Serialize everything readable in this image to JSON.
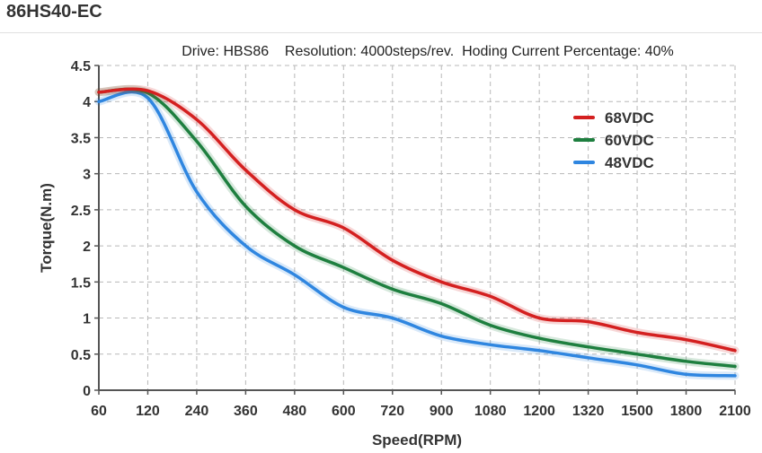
{
  "page_title": "86HS40-EC",
  "chart_data": {
    "type": "line",
    "title": "Drive: HBS86    Resolution: 4000steps/rev.  Hoding Current Percentage: 40%",
    "xlabel": "Speed(RPM)",
    "ylabel": "Torque(N.m)",
    "categories": [
      "60",
      "120",
      "240",
      "360",
      "480",
      "600",
      "720",
      "900",
      "1080",
      "1200",
      "1320",
      "1500",
      "1800",
      "2100"
    ],
    "y_ticks": [
      "0",
      "0.5",
      "1",
      "1.5",
      "2",
      "2.5",
      "3",
      "3.5",
      "4",
      "4.5"
    ],
    "ylim": [
      0,
      4.5
    ],
    "grid": true,
    "legend_position": "top-right",
    "series": [
      {
        "name": "68VDC",
        "color": "#d42020",
        "values": [
          4.13,
          4.15,
          3.75,
          3.05,
          2.5,
          2.25,
          1.8,
          1.5,
          1.3,
          1.0,
          0.95,
          0.8,
          0.7,
          0.55
        ]
      },
      {
        "name": "60VDC",
        "color": "#1e7f3f",
        "values": [
          4.13,
          4.12,
          3.45,
          2.55,
          2.0,
          1.7,
          1.4,
          1.2,
          0.9,
          0.72,
          0.6,
          0.5,
          0.4,
          0.33
        ]
      },
      {
        "name": "48VDC",
        "color": "#2f86e0",
        "values": [
          4.0,
          4.05,
          2.75,
          2.0,
          1.6,
          1.15,
          1.0,
          0.75,
          0.63,
          0.55,
          0.45,
          0.35,
          0.22,
          0.2
        ]
      }
    ]
  }
}
